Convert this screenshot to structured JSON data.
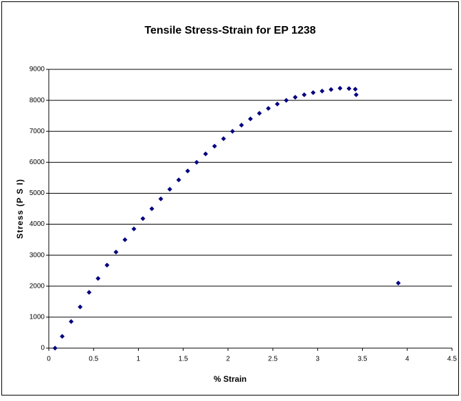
{
  "chart_data": {
    "type": "scatter",
    "title": "Tensile Stress-Strain for EP 1238",
    "x_label": "% Strain",
    "y_label": "Stress (P S I)",
    "series": [
      {
        "color": "#000080",
        "x": [
          0.07,
          0.15,
          0.25,
          0.35,
          0.45,
          0.55,
          0.65,
          0.75,
          0.85,
          0.95,
          1.05,
          1.15,
          1.25,
          1.35,
          1.45,
          1.55,
          1.65,
          1.75,
          1.85,
          1.95,
          2.05,
          2.15,
          2.25,
          2.35,
          2.45,
          2.55,
          2.65,
          2.75,
          2.85,
          2.95,
          3.05,
          3.15,
          3.25,
          3.35,
          3.42,
          3.43,
          3.9
        ],
        "values": [
          0,
          380,
          860,
          1330,
          1800,
          2250,
          2680,
          3100,
          3500,
          3850,
          4180,
          4500,
          4820,
          5130,
          5430,
          5720,
          6000,
          6270,
          6520,
          6760,
          7000,
          7200,
          7400,
          7580,
          7740,
          7880,
          8000,
          8100,
          8180,
          8250,
          8300,
          8350,
          8390,
          8380,
          8360,
          8180,
          2100
        ]
      }
    ],
    "xlim": [
      0,
      4.5
    ],
    "xticks": [
      0,
      0.5,
      1,
      1.5,
      2,
      2.5,
      3,
      3.5,
      4,
      4.5
    ],
    "ylim": [
      0,
      9000
    ],
    "yticks": [
      0,
      1000,
      2000,
      3000,
      4000,
      5000,
      6000,
      7000,
      8000,
      9000
    ],
    "grid": true
  }
}
